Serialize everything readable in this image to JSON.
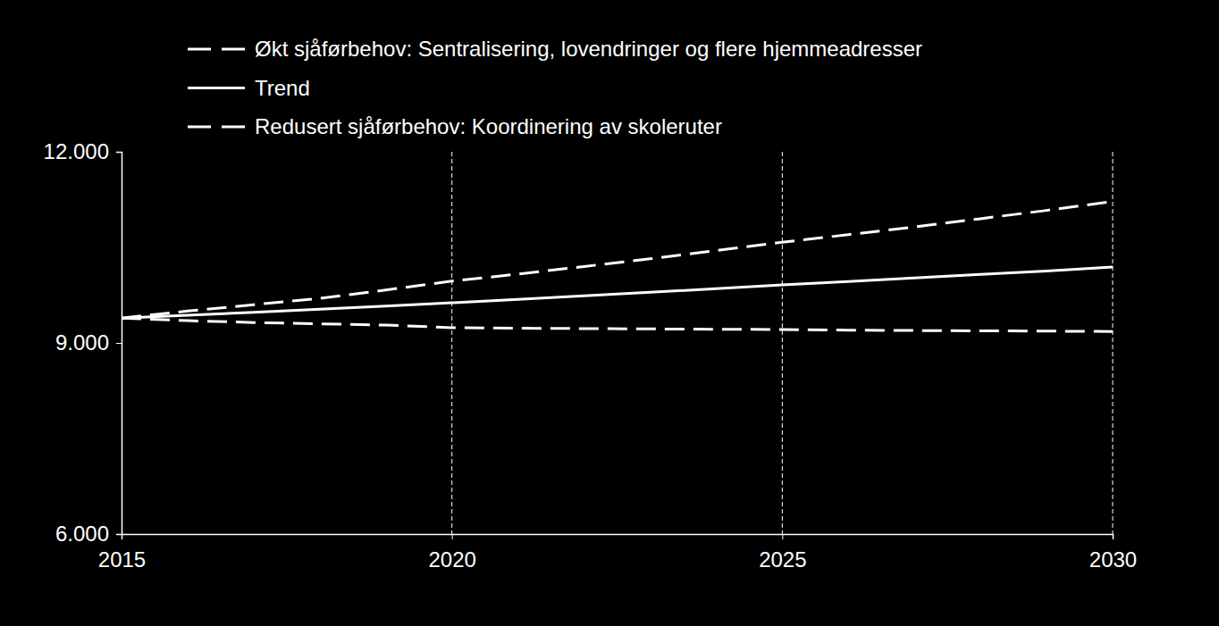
{
  "chart_data": {
    "type": "line",
    "x": [
      2015,
      2016,
      2017,
      2018,
      2019,
      2020,
      2021,
      2022,
      2023,
      2024,
      2025,
      2026,
      2027,
      2028,
      2029,
      2030
    ],
    "series": [
      {
        "name": "Økt sjåførbehov: Sentralisering, lovendringer og flere hjemmeadresser",
        "color": "#ffffff",
        "line_style": "dashed",
        "values": [
          9390,
          9500,
          9600,
          9700,
          9830,
          9970,
          10080,
          10200,
          10320,
          10450,
          10580,
          10700,
          10820,
          10950,
          11080,
          11220
        ]
      },
      {
        "name": "Trend",
        "color": "#ffffff",
        "line_style": "solid",
        "values": [
          9390,
          9435,
          9480,
          9530,
          9580,
          9630,
          9685,
          9740,
          9795,
          9850,
          9910,
          9965,
          10020,
          10075,
          10130,
          10190
        ]
      },
      {
        "name": "Redusert sjåførbehov: Koordinering av skoleruter",
        "color": "#ffffff",
        "line_style": "dashed",
        "values": [
          9390,
          9350,
          9320,
          9300,
          9280,
          9240,
          9230,
          9225,
          9220,
          9215,
          9210,
          9200,
          9195,
          9190,
          9185,
          9180
        ]
      }
    ],
    "xlim": [
      2015,
      2030
    ],
    "xticks": [
      2015,
      2020,
      2025,
      2030
    ],
    "ylim": [
      6000,
      12000
    ],
    "yticks": [
      {
        "value": 6000,
        "label": "6.000"
      },
      {
        "value": 9000,
        "label": "9.000"
      },
      {
        "value": 12000,
        "label": "12.000"
      }
    ],
    "grid": true,
    "legend": "top-left"
  }
}
